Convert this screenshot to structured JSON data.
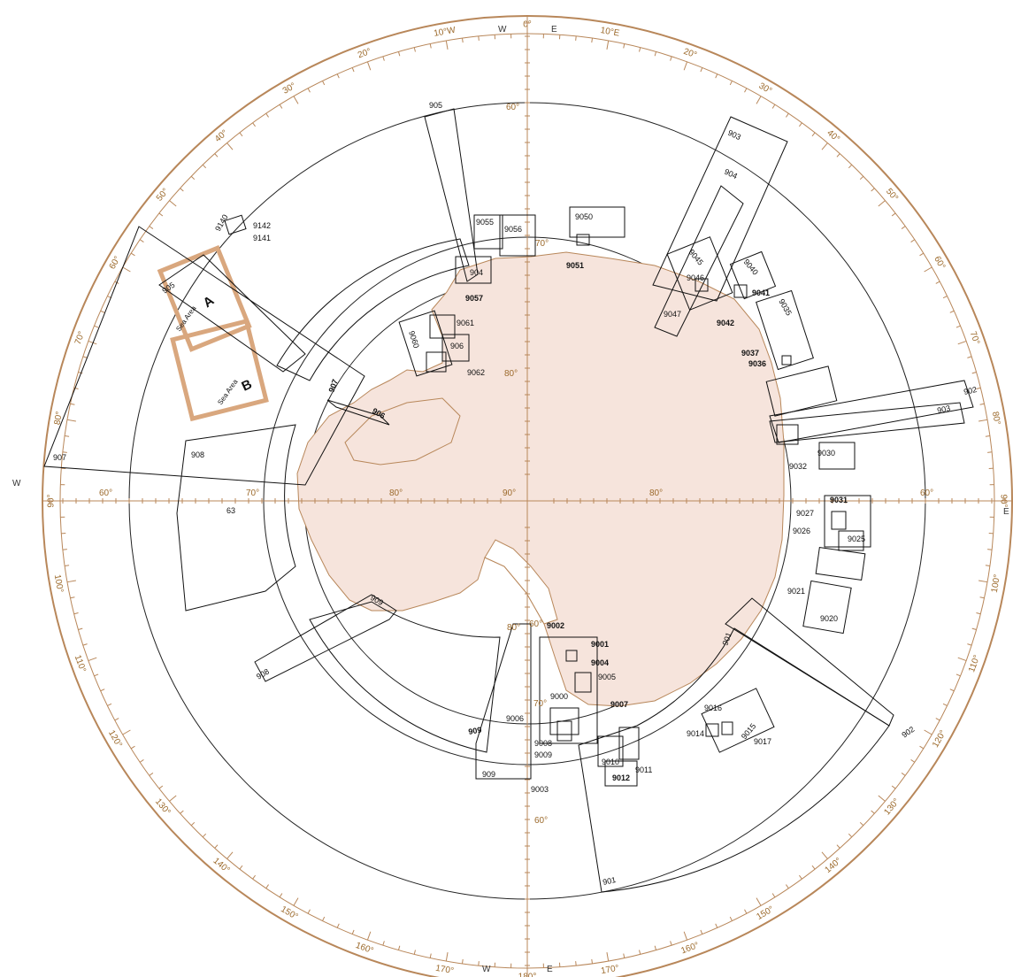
{
  "colors": {
    "land_fill": "#f6e4dc",
    "coast": "#b8875a",
    "ring": "#b8875a",
    "chart_outline": "#111111",
    "highlight": "#d9a77e"
  },
  "degree_labels": [
    "0°",
    "10°E",
    "20°",
    "30°",
    "40°",
    "50°",
    "60°",
    "70°",
    "80°",
    "90°",
    "100°",
    "110°",
    "120°",
    "130°",
    "140°",
    "150°",
    "160°",
    "170°",
    "180°",
    "170°",
    "160°",
    "150°",
    "140°",
    "130°",
    "120°",
    "110°",
    "100°",
    "90°",
    "80°",
    "70°",
    "60°",
    "50°",
    "40°",
    "30°",
    "20°",
    "10°W"
  ],
  "cardinal_labels": {
    "w_top": "W",
    "e_top": "E",
    "w_bottom": "W",
    "e_bottom": "E",
    "w_left": "W",
    "e_right": "E"
  },
  "lat_labels": [
    "60°",
    "70°",
    "80°",
    "90°",
    "80°",
    "60°",
    "60°",
    "70°",
    "80°",
    "60°",
    "70°",
    "80°",
    "60°",
    "70°",
    "80°",
    "60°"
  ],
  "chart_numbers": {
    "c905": "905",
    "c904": "904",
    "c903": "903",
    "c902": "902",
    "c901": "901",
    "c909": "909",
    "c908": "908",
    "c907": "907",
    "c906": "906",
    "c9050": "9050",
    "c9051": "9051",
    "c9055": "9055",
    "c9056": "9056",
    "c9057": "9057",
    "c9061": "9061",
    "c9060": "9060",
    "c9062": "9062",
    "c9045": "9045",
    "c9046": "9046",
    "c9047": "9047",
    "c9040": "9040",
    "c9041": "9041",
    "c9042": "9042",
    "c9035": "9035",
    "c9037": "9037",
    "c9036": "9036",
    "c9032": "9032",
    "c9030": "9030",
    "c9031": "9031",
    "c9027": "9027",
    "c9026": "9026",
    "c9025": "9025",
    "c9021": "9021",
    "c9020": "9020",
    "c9016": "9016",
    "c9015": "9015",
    "c9014": "9014",
    "c9017": "9017",
    "c9002": "9002",
    "c9001": "9001",
    "c9004": "9004",
    "c9005": "9005",
    "c9000": "9000",
    "c9006": "9006",
    "c9007": "9007",
    "c9008": "9008",
    "c9009": "9009",
    "c9003": "9003",
    "c9010": "9010",
    "c9011": "9011",
    "c9012": "9012",
    "c9140": "9140",
    "c9142": "9142",
    "c9141": "9141",
    "c63": "63",
    "c905b": "905",
    "c901b": "901",
    "c909b": "909",
    "c908b": "908",
    "c907b": "907",
    "c904b": "904",
    "c906b": "906",
    "c902b": "902",
    "c903b": "903"
  },
  "highlight_labels": {
    "a_letter": "A",
    "b_letter": "B",
    "a_caption": "Sea Area",
    "b_caption": "Sea Area"
  }
}
